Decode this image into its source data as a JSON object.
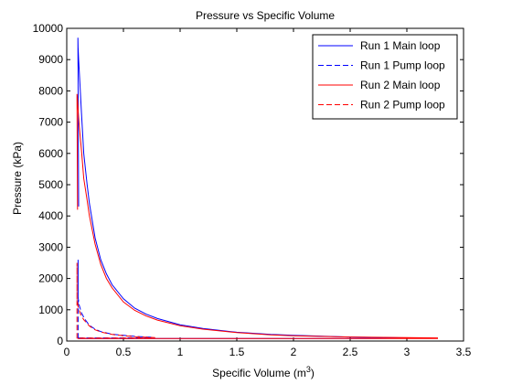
{
  "chart_data": {
    "type": "line",
    "title": "Pressure vs Specific Volume",
    "xlabel_main": "Specific Volume (m",
    "xlabel_sup": "3",
    "xlabel_tail": ")",
    "ylabel": "Pressure (kPa)",
    "xlim": [
      0,
      3.5
    ],
    "ylim": [
      0,
      10000
    ],
    "xticks": [
      0,
      0.5,
      1,
      1.5,
      2,
      2.5,
      3,
      3.5
    ],
    "xtick_labels": [
      "0",
      "0.5",
      "1",
      "1.5",
      "2",
      "2.5",
      "3",
      "3.5"
    ],
    "yticks": [
      0,
      1000,
      2000,
      3000,
      4000,
      5000,
      6000,
      7000,
      8000,
      9000,
      10000
    ],
    "ytick_labels": [
      "0",
      "1000",
      "2000",
      "3000",
      "4000",
      "5000",
      "6000",
      "7000",
      "8000",
      "9000",
      "10000"
    ],
    "grid": false,
    "legend_position": "top-right",
    "series": [
      {
        "name": "Run 1 Main loop",
        "color": "#0000ff",
        "style": "solid",
        "x": [
          0.105,
          0.098,
          0.1,
          0.105,
          0.115,
          0.13,
          0.15,
          0.18,
          0.2,
          0.25,
          0.3,
          0.35,
          0.4,
          0.5,
          0.6,
          0.7,
          0.8,
          1.0,
          1.2,
          1.5,
          1.8,
          2.0,
          2.5,
          3.0,
          3.0,
          2.5,
          2.0,
          1.5,
          1.0,
          0.8,
          0.6,
          0.5,
          0.4,
          0.35,
          0.3,
          0.25,
          0.2,
          0.18,
          0.15,
          0.13,
          0.115,
          0.105
        ],
        "y": [
          4300,
          9700,
          9400,
          9000,
          8300,
          7300,
          6000,
          5000,
          4400,
          3300,
          2600,
          2150,
          1800,
          1350,
          1050,
          860,
          720,
          520,
          400,
          280,
          210,
          180,
          130,
          100,
          90,
          80,
          80,
          80,
          80,
          80,
          80,
          80,
          80,
          80,
          80,
          80,
          80,
          80,
          80,
          80,
          80,
          80
        ]
      },
      {
        "name": "Run 1 Pump loop",
        "color": "#0000ff",
        "style": "dashed",
        "x": [
          0.1,
          0.1,
          0.1,
          0.11,
          0.13,
          0.16,
          0.2,
          0.25,
          0.3,
          0.4,
          0.5,
          0.6,
          0.7,
          0.75,
          0.7,
          0.5,
          0.3,
          0.2,
          0.15,
          0.12,
          0.1
        ],
        "y": [
          80,
          2600,
          1400,
          1150,
          900,
          700,
          500,
          380,
          300,
          220,
          180,
          150,
          130,
          120,
          105,
          100,
          100,
          100,
          100,
          100,
          100
        ]
      },
      {
        "name": "Run 2 Main loop",
        "color": "#ff0000",
        "style": "solid",
        "x": [
          0.095,
          0.09,
          0.095,
          0.1,
          0.11,
          0.13,
          0.15,
          0.18,
          0.2,
          0.25,
          0.3,
          0.35,
          0.4,
          0.5,
          0.6,
          0.7,
          0.8,
          1.0,
          1.2,
          1.5,
          1.8,
          2.0,
          2.5,
          3.0,
          3.27,
          3.27,
          3.0,
          2.5,
          2.0,
          1.5,
          1.0,
          0.8,
          0.6,
          0.5,
          0.4,
          0.35,
          0.3,
          0.25,
          0.2,
          0.18,
          0.15,
          0.13,
          0.11,
          0.095
        ],
        "y": [
          4200,
          7900,
          7700,
          7400,
          6900,
          6100,
          5200,
          4500,
          4000,
          3100,
          2450,
          2000,
          1700,
          1250,
          980,
          800,
          670,
          490,
          380,
          270,
          200,
          170,
          130,
          110,
          100,
          80,
          80,
          80,
          80,
          80,
          80,
          80,
          80,
          80,
          80,
          80,
          80,
          80,
          80,
          80,
          80,
          80,
          80,
          80
        ]
      },
      {
        "name": "Run 2 Pump loop",
        "color": "#ff0000",
        "style": "dashed",
        "x": [
          0.09,
          0.09,
          0.09,
          0.1,
          0.12,
          0.15,
          0.2,
          0.25,
          0.3,
          0.4,
          0.5,
          0.6,
          0.7,
          0.78,
          0.7,
          0.5,
          0.3,
          0.2,
          0.15,
          0.12,
          0.09
        ],
        "y": [
          80,
          2500,
          1350,
          1100,
          870,
          680,
          480,
          360,
          290,
          210,
          170,
          140,
          120,
          110,
          100,
          95,
          95,
          95,
          95,
          95,
          95
        ]
      }
    ]
  }
}
